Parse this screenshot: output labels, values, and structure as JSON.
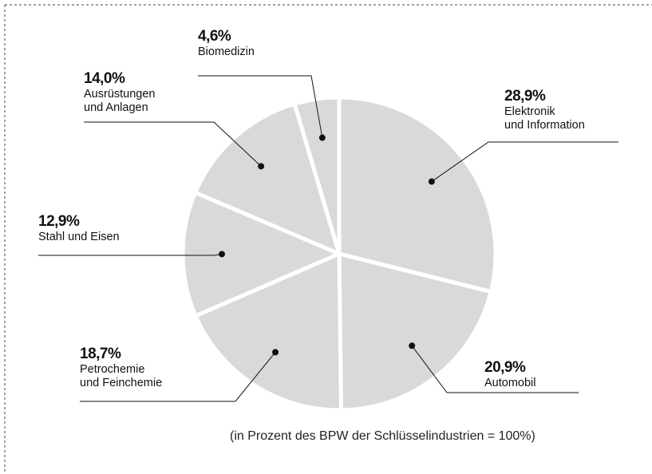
{
  "chart_data": {
    "type": "pie",
    "categories": [
      "Elektronik\nund Information",
      "Automobil",
      "Petrochemie\nund Feinchemie",
      "Stahl und Eisen",
      "Ausrüstungen\nund Anlagen",
      "Biomedizin"
    ],
    "values": [
      28.9,
      20.9,
      18.7,
      12.9,
      14.0,
      4.6
    ],
    "value_labels": [
      "28,9%",
      "20,9%",
      "18,7%",
      "12,9%",
      "14,0%",
      "4,6%"
    ],
    "color": "#d9d9d9",
    "note": "(in Prozent des BPW der Schlüsselindustrien = 100%)"
  }
}
